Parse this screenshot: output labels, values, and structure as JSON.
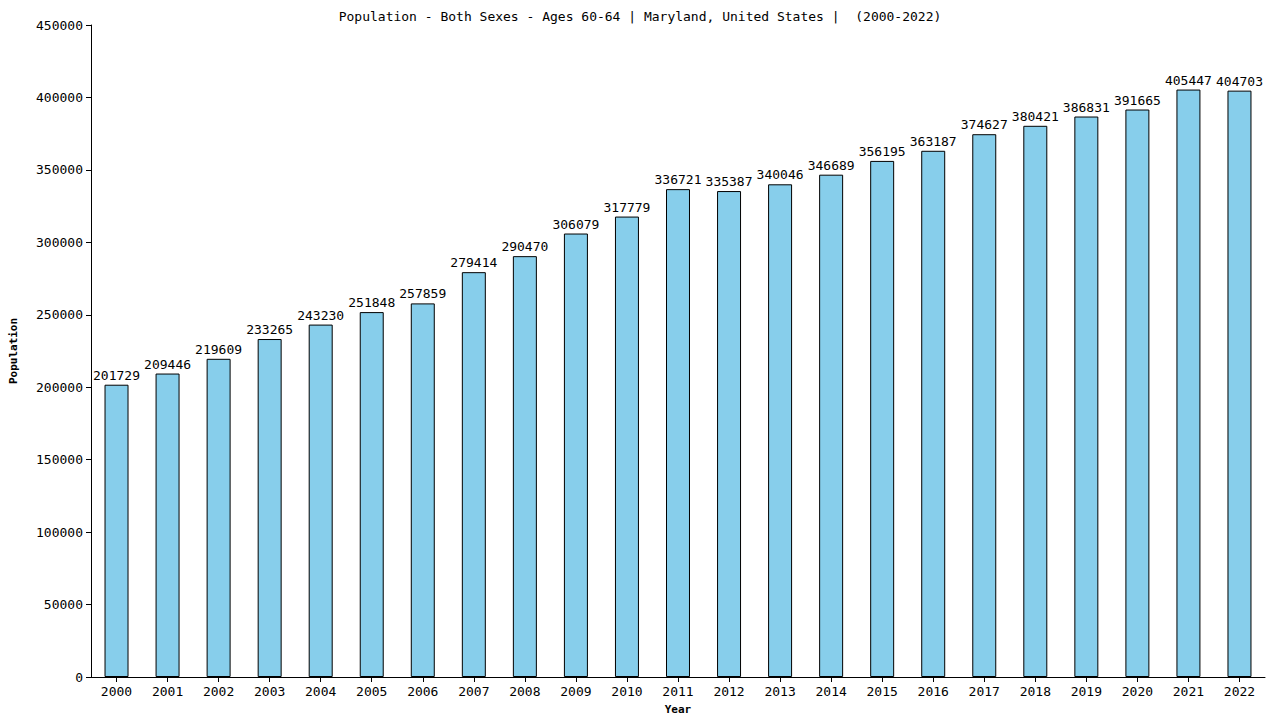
{
  "chart_data": {
    "type": "bar",
    "title": "Population - Both Sexes - Ages 60-64 | Maryland, United States |  (2000-2022)",
    "x_label": "Year",
    "y_label": "Population",
    "categories": [
      "2000",
      "2001",
      "2002",
      "2003",
      "2004",
      "2005",
      "2006",
      "2007",
      "2008",
      "2009",
      "2010",
      "2011",
      "2012",
      "2013",
      "2014",
      "2015",
      "2016",
      "2017",
      "2018",
      "2019",
      "2020",
      "2021",
      "2022"
    ],
    "values": [
      201729,
      209446,
      219609,
      233265,
      243230,
      251848,
      257859,
      279414,
      290470,
      306079,
      317779,
      336721,
      335387,
      340046,
      346689,
      356195,
      363187,
      374627,
      380421,
      386831,
      391665,
      405447,
      404703
    ],
    "color": "#87ceeb",
    "ylim": [
      0,
      450000
    ],
    "yticks": [
      0,
      50000,
      100000,
      150000,
      200000,
      250000,
      300000,
      350000,
      400000,
      450000
    ],
    "grid": false,
    "data_labels": true
  }
}
